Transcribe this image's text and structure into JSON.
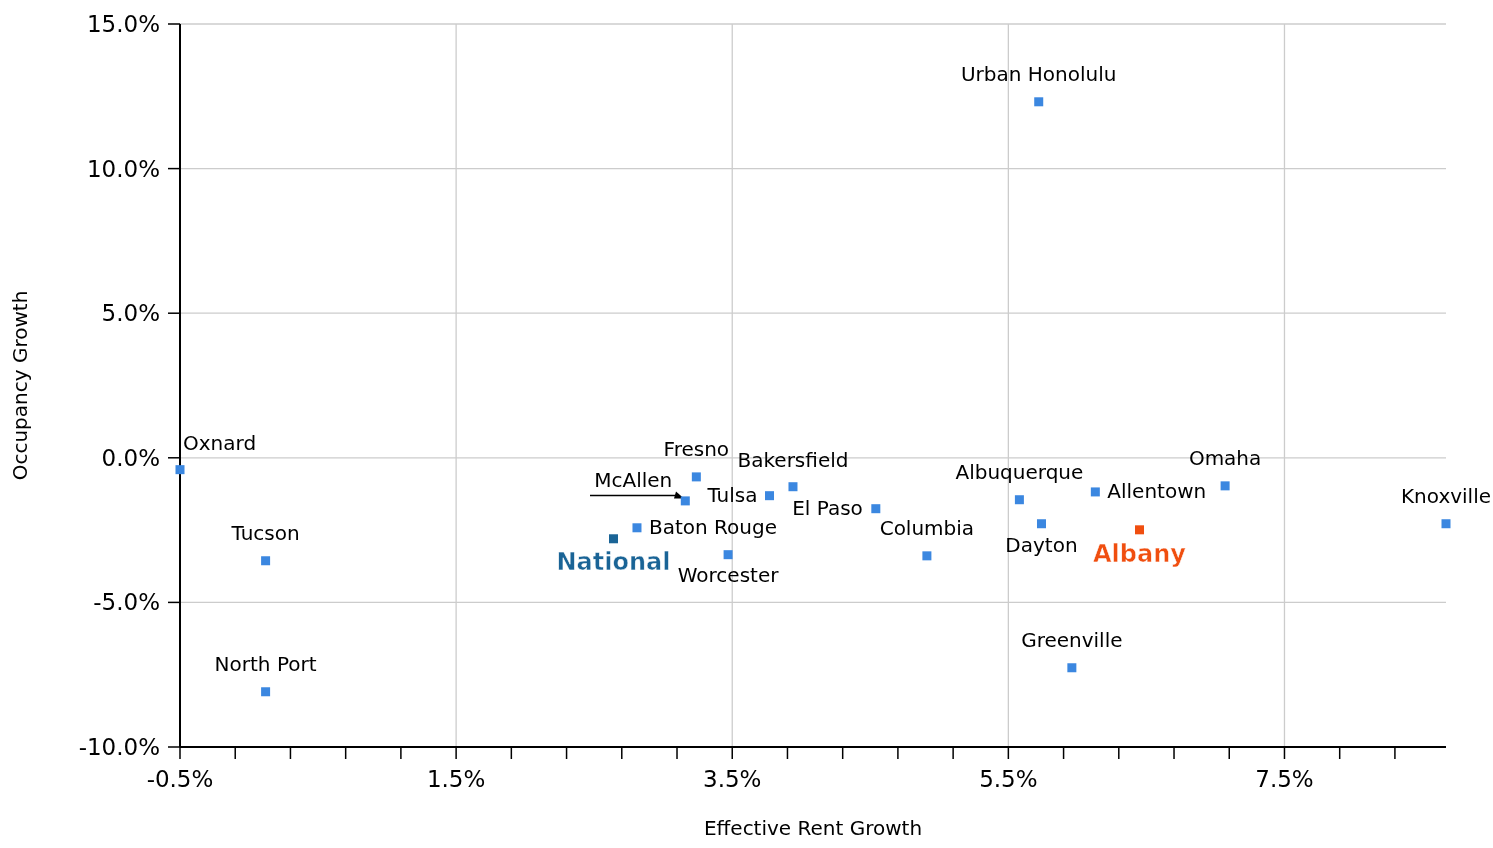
{
  "chart_data": {
    "type": "scatter",
    "xlabel": "Effective Rent Growth",
    "ylabel": "Occupancy Growth",
    "marker": "square",
    "grid": true,
    "xlim": [
      -0.5,
      8.67
    ],
    "ylim": [
      -10,
      15
    ],
    "xticks": [
      {
        "value": -0.5,
        "label": "-0.5%"
      },
      {
        "value": -0.1,
        "label": null
      },
      {
        "value": 0.3,
        "label": null
      },
      {
        "value": 0.7,
        "label": null
      },
      {
        "value": 1.1,
        "label": null
      },
      {
        "value": 1.5,
        "label": "1.5%"
      },
      {
        "value": 1.9,
        "label": null
      },
      {
        "value": 2.3,
        "label": null
      },
      {
        "value": 2.7,
        "label": null
      },
      {
        "value": 3.1,
        "label": null
      },
      {
        "value": 3.5,
        "label": "3.5%"
      },
      {
        "value": 3.9,
        "label": null
      },
      {
        "value": 4.3,
        "label": null
      },
      {
        "value": 4.7,
        "label": null
      },
      {
        "value": 5.1,
        "label": null
      },
      {
        "value": 5.5,
        "label": "5.5%"
      },
      {
        "value": 5.9,
        "label": null
      },
      {
        "value": 6.3,
        "label": null
      },
      {
        "value": 6.7,
        "label": null
      },
      {
        "value": 7.1,
        "label": null
      },
      {
        "value": 7.5,
        "label": "7.5%"
      },
      {
        "value": 7.9,
        "label": null
      },
      {
        "value": 8.3,
        "label": null
      }
    ],
    "yticks": [
      {
        "value": -10,
        "label": "-10.0%"
      },
      {
        "value": -5,
        "label": "-5.0%"
      },
      {
        "value": 0,
        "label": "0.0%"
      },
      {
        "value": 5,
        "label": "5.0%"
      },
      {
        "value": 10,
        "label": "10.0%"
      },
      {
        "value": 15,
        "label": "15.0%"
      }
    ],
    "series": [
      {
        "color": "#3b87e0",
        "x": [
          -0.5,
          0.12,
          0.12,
          3.16,
          2.81,
          3.24,
          3.47,
          3.77,
          3.94,
          4.54,
          4.91,
          5.72,
          5.58,
          5.74,
          5.96,
          6.13,
          7.07,
          8.67
        ],
        "values": [
          -0.41,
          -3.56,
          -8.09,
          -1.49,
          -2.42,
          -0.66,
          -3.35,
          -1.31,
          -1.0,
          -1.76,
          -3.39,
          12.31,
          -1.45,
          -2.28,
          -7.26,
          -1.18,
          -0.97,
          -2.28
        ]
      },
      {
        "name": "National",
        "color": "#1a6496",
        "x": [
          2.64
        ],
        "values": [
          -2.8
        ]
      },
      {
        "name": "Albany",
        "color": "#f04e0f",
        "x": [
          6.45
        ],
        "values": [
          -2.49
        ]
      }
    ],
    "annotations": [
      {
        "text": "Oxnard",
        "x": -0.5,
        "y": -0.41
      },
      {
        "text": "Tucson",
        "x": 0.12,
        "y": -3.56
      },
      {
        "text": "North Port",
        "x": 0.12,
        "y": -8.09
      },
      {
        "text": "McAllen",
        "x": 3.16,
        "y": -1.49
      },
      {
        "text": "Baton Rouge",
        "x": 2.81,
        "y": -2.42
      },
      {
        "text": "Fresno",
        "x": 3.24,
        "y": -0.66
      },
      {
        "text": "Worcester",
        "x": 3.47,
        "y": -3.35
      },
      {
        "text": "Tulsa",
        "x": 3.77,
        "y": -1.31
      },
      {
        "text": "Bakersfield",
        "x": 3.94,
        "y": -1.0
      },
      {
        "text": "El Paso",
        "x": 4.54,
        "y": -1.76
      },
      {
        "text": "Columbia",
        "x": 4.91,
        "y": -3.39
      },
      {
        "text": "Urban Honolulu",
        "x": 5.72,
        "y": 12.31
      },
      {
        "text": "Albuquerque",
        "x": 5.58,
        "y": -1.45
      },
      {
        "text": "Dayton",
        "x": 5.74,
        "y": -2.28
      },
      {
        "text": "Greenville",
        "x": 5.96,
        "y": -7.26
      },
      {
        "text": "Allentown",
        "x": 6.13,
        "y": -1.18
      },
      {
        "text": "Omaha",
        "x": 7.07,
        "y": -0.97
      },
      {
        "text": "Knoxville",
        "x": 8.67,
        "y": -2.28
      }
    ]
  }
}
